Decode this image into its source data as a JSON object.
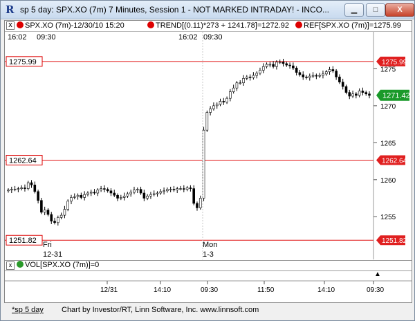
{
  "window": {
    "title": "sp 5 day: SPX.XO (7m) 7 Minutes, Session 1 - NOT MARKED INTRADAY! - INCO...",
    "minimize": "▁",
    "maximize": "□",
    "close": "X"
  },
  "header": {
    "symbol": "SPX.XO (7m)-12/30/10 15:20",
    "trend": "TREND[(0.11)*273 + 1241.78]=1272.92",
    "ref": "REF[SPX.XO (7m)]=1275.99",
    "close_box": "x"
  },
  "subheader": {
    "left_time1": "16:02",
    "left_time2": "09:30",
    "mid_time1": "16:02",
    "mid_time2": "09:30"
  },
  "volume": {
    "label": "VOL[SPX.XO (7m)]=0",
    "close_box": "x",
    "scroll_up": "▲"
  },
  "status": {
    "tab": "*sp 5 day",
    "credit": "Chart by Investor/RT, Linn Software, Inc. www.linnsoft.com"
  },
  "chart_data": {
    "type": "candlestick",
    "ylim": [
      1251.0,
      1278.5
    ],
    "y_ticks": [
      1255,
      1260,
      1265,
      1270,
      1275
    ],
    "reference_lines": [
      {
        "value": 1275.99,
        "label": "1275.99"
      },
      {
        "value": 1262.64,
        "label": "1262.64"
      },
      {
        "value": 1251.82,
        "label": "1251.82"
      }
    ],
    "last_price": {
      "value": 1271.42,
      "label": "1271.42"
    },
    "session_labels": [
      {
        "line1": "Fri",
        "line2": "12-31"
      },
      {
        "line1": "Mon",
        "line2": "1-3"
      }
    ],
    "x_ticks": [
      "12/31",
      "14:10",
      "09:30",
      "11:50",
      "14:10",
      "09:30"
    ],
    "closes": [
      1258.6,
      1258.7,
      1258.7,
      1258.8,
      1258.9,
      1258.8,
      1259.6,
      1259.3,
      1258.4,
      1257.2,
      1255.6,
      1255.9,
      1255.3,
      1254.4,
      1254.2,
      1254.9,
      1255.2,
      1256.0,
      1257.1,
      1257.6,
      1257.7,
      1257.9,
      1257.6,
      1258.0,
      1258.2,
      1258.3,
      1258.2,
      1258.6,
      1258.8,
      1258.7,
      1258.5,
      1258.2,
      1257.9,
      1257.5,
      1257.6,
      1257.8,
      1258.1,
      1258.3,
      1258.6,
      1258.7,
      1258.2,
      1257.5,
      1257.8,
      1258.0,
      1258.1,
      1258.2,
      1258.4,
      1258.5,
      1258.7,
      1258.7,
      1258.6,
      1258.8,
      1258.8,
      1258.7,
      1258.9,
      1258.8,
      1256.8,
      1256.2,
      1257.5,
      1266.7,
      1269.1,
      1269.6,
      1270.0,
      1270.2,
      1270.6,
      1270.5,
      1271.0,
      1271.9,
      1272.4,
      1273.1,
      1273.1,
      1273.7,
      1273.9,
      1273.8,
      1274.1,
      1274.4,
      1274.8,
      1275.3,
      1275.6,
      1275.6,
      1275.3,
      1275.9,
      1275.9,
      1275.7,
      1275.5,
      1275.4,
      1275.1,
      1274.5,
      1274.2,
      1273.9,
      1273.8,
      1274.0,
      1274.1,
      1274.0,
      1274.1,
      1274.3,
      1274.6,
      1274.9,
      1274.7,
      1273.9,
      1273.2,
      1272.6,
      1271.8,
      1271.3,
      1271.6,
      1271.4,
      1272.0,
      1271.8,
      1271.6,
      1271.4
    ]
  }
}
